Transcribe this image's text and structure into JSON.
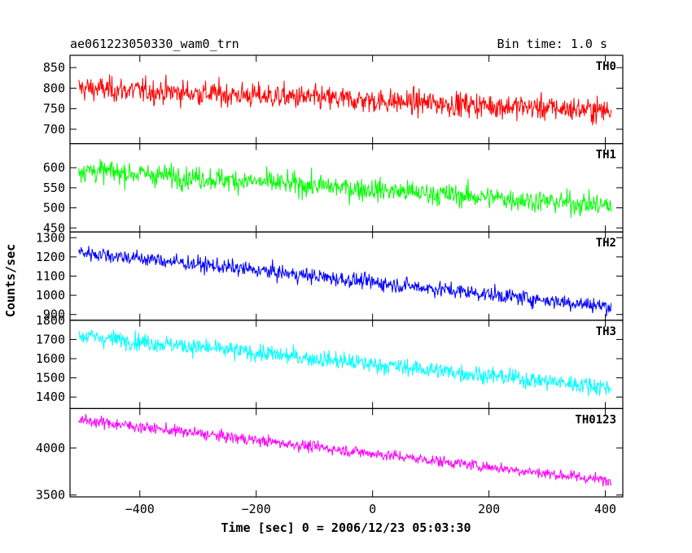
{
  "header": {
    "title": "ae061223050330_wam0_trn",
    "bin_time": "Bin time: 1.0 s"
  },
  "chart_data": {
    "type": "line",
    "xlabel": "Time [sec] 0 = 2006/12/23 05:03:30",
    "ylabel": "Counts/sec",
    "xlim": [
      -520,
      430
    ],
    "xticks": [
      -400,
      -200,
      0,
      200,
      400
    ],
    "x_range_data": [
      -505,
      410
    ],
    "panels": [
      {
        "name": "TH0",
        "color": "#ff0000",
        "ylim": [
          665,
          880
        ],
        "yticks": [
          700,
          750,
          800,
          850
        ],
        "trend_start": 800,
        "trend_end": 745,
        "noise": 30
      },
      {
        "name": "TH1",
        "color": "#00ff00",
        "ylim": [
          440,
          660
        ],
        "yticks": [
          450,
          500,
          550,
          600
        ],
        "trend_start": 595,
        "trend_end": 505,
        "noise": 28
      },
      {
        "name": "TH2",
        "color": "#0000ff",
        "ylim": [
          870,
          1330
        ],
        "yticks": [
          900,
          1000,
          1100,
          1200,
          1300
        ],
        "trend_start": 1225,
        "trend_end": 940,
        "noise": 40
      },
      {
        "name": "TH3",
        "color": "#00ffff",
        "ylim": [
          1340,
          1800
        ],
        "yticks": [
          1400,
          1500,
          1600,
          1700,
          1800
        ],
        "trend_start": 1720,
        "trend_end": 1450,
        "noise": 45
      },
      {
        "name": "TH0123",
        "color": "#ff00ff",
        "ylim": [
          3480,
          4420
        ],
        "yticks": [
          3500,
          4000
        ],
        "trend_start": 4300,
        "trend_end": 3650,
        "noise": 60
      }
    ],
    "grid": false
  }
}
